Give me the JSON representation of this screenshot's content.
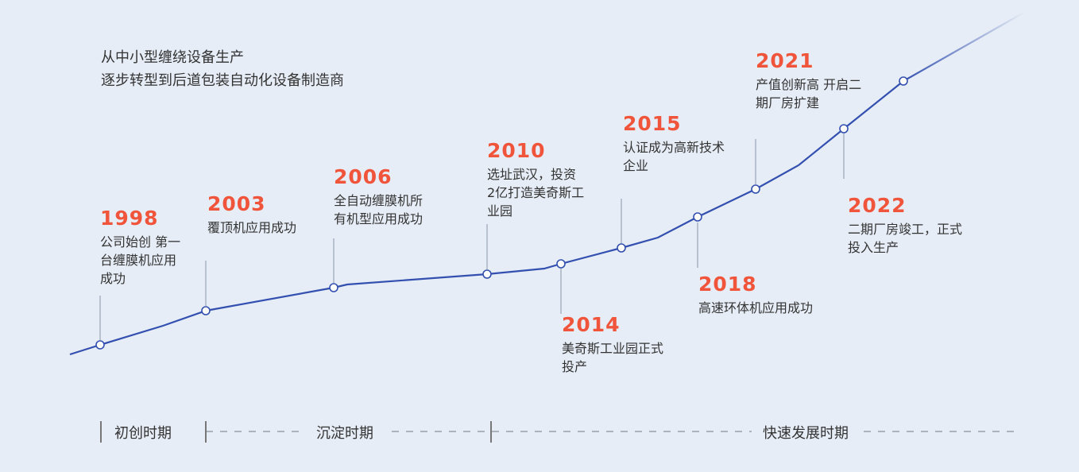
{
  "intro": {
    "line1": "从中小型缠绕设备生产",
    "line2": "逐步转型到后道包装自动化设备制造商"
  },
  "colors": {
    "accent": "#f0553b",
    "line": "#3350b0",
    "background": "#e6edf6"
  },
  "events": [
    {
      "year": "1998",
      "text": "公司始创 第一\n台缠膜机应用\n成功"
    },
    {
      "year": "2003",
      "text": "覆顶机应用成功"
    },
    {
      "year": "2006",
      "text": "全自动缠膜机所\n有机型应用成功"
    },
    {
      "year": "2010",
      "text": "选址武汉，投资\n2亿打造美奇斯工\n业园"
    },
    {
      "year": "2014",
      "text": "美奇斯工业园正式\n投产"
    },
    {
      "year": "2015",
      "text": "认证成为高新技术\n企业"
    },
    {
      "year": "2018",
      "text": "高速环体机应用成功"
    },
    {
      "year": "2021",
      "text": "产值创新高 开启二\n期厂房扩建"
    },
    {
      "year": "2022",
      "text": "二期厂房竣工，正式\n投入生产"
    }
  ],
  "phases": [
    "初创时期",
    "沉淀时期",
    "快速发展时期"
  ]
}
